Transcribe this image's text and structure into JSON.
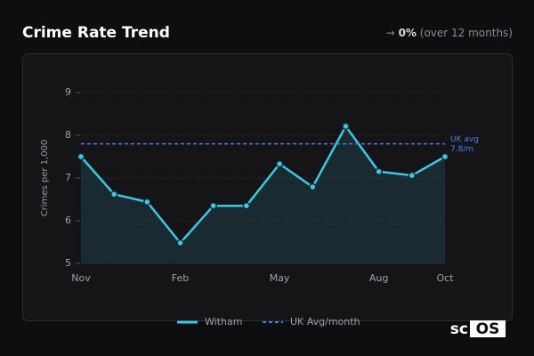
{
  "header": {
    "title": "Crime Rate Trend",
    "change_arrow": "→",
    "change": "0%",
    "period": "(over 12 months)"
  },
  "logo": [
    "sc",
    "OS"
  ],
  "chart_data": {
    "type": "line",
    "y_label": "Crimes per 1,000",
    "categories": [
      "Nov",
      null,
      null,
      "Feb",
      null,
      null,
      "May",
      null,
      null,
      "Aug",
      null,
      "Oct"
    ],
    "series": [
      {
        "name": "Witham",
        "color": "#3cc8e4",
        "values": [
          7.5,
          6.62,
          6.44,
          5.48,
          6.35,
          6.35,
          7.33,
          6.79,
          8.21,
          7.15,
          7.06,
          7.5
        ]
      }
    ],
    "reference": {
      "name": "UK Avg/month",
      "color": "#4c7fe6",
      "value": 7.8,
      "label_lines": [
        "UK avg",
        "7.8/m"
      ]
    },
    "ylim": [
      5,
      9.2
    ],
    "yticks": [
      5,
      6,
      7,
      8,
      9
    ],
    "grid": true
  }
}
